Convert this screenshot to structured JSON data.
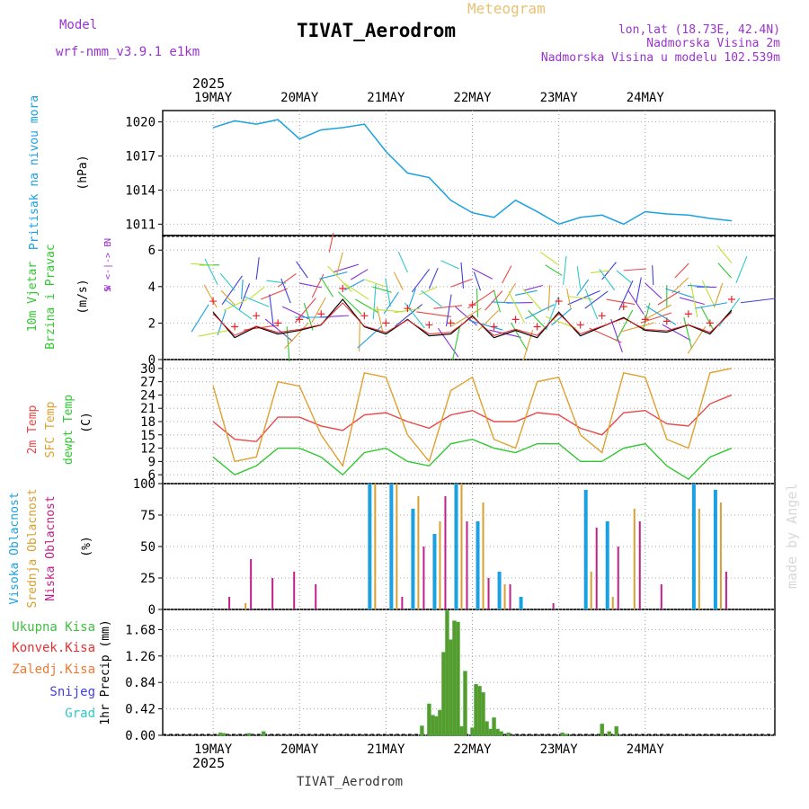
{
  "header": {
    "model_label": "Model",
    "model_name": "wrf-nmm_v3.9.1  e1km",
    "subtitle": "Meteogram",
    "title": "TIVAT_Aerodrom",
    "lonlat": "lon,lat (18.73E, 42.4N)",
    "elev": "Nadmorska Visina 2m",
    "elev_model": "Nadmorska Visina u modelu 102.539m",
    "footer": "TIVAT_Aerodrom",
    "watermark": "made by Angel",
    "year": "2025"
  },
  "colors": {
    "pressure": "#1ba1e2",
    "wind_black": "#000000",
    "wind_red": "#e8262a",
    "t2m": "#e84848",
    "sfc": "#e0a030",
    "dew": "#30c830",
    "high_cloud": "#1ba1e2",
    "mid_cloud": "#d8a030",
    "low_cloud": "#c0208a",
    "precip_total": "#40c040",
    "precip_conv": "#e83030",
    "precip_frz": "#f07830",
    "snow": "#4040e0",
    "hail": "#30c8c8"
  },
  "chart_data": [
    {
      "type": "line",
      "panel": "pressure",
      "ylabel_lines": [
        "Pritisak na nivou mora",
        "(hPa)"
      ],
      "x_ticks": [
        "19MAY",
        "20MAY",
        "21MAY",
        "22MAY",
        "23MAY",
        "24MAY"
      ],
      "yticks": [
        1011,
        1014,
        1017,
        1020
      ],
      "ylim": [
        1010,
        1021
      ],
      "x_hours": [
        0,
        6,
        12,
        18,
        24,
        30,
        36,
        42,
        48,
        54,
        60,
        66,
        72,
        78,
        84,
        90,
        96,
        102,
        108,
        114,
        120,
        126,
        132,
        138,
        144
      ],
      "series": [
        {
          "name": "Pritisak na nivou mora",
          "values": [
            1019.5,
            1020.1,
            1019.8,
            1020.2,
            1018.5,
            1019.3,
            1019.5,
            1019.8,
            1017.4,
            1015.5,
            1015.1,
            1013.1,
            1012.0,
            1011.6,
            1013.1,
            1012.1,
            1011.0,
            1011.6,
            1011.8,
            1011.0,
            1012.1,
            1011.9,
            1011.8,
            1011.5,
            1011.3
          ]
        }
      ]
    },
    {
      "type": "line",
      "panel": "wind",
      "ylabel_lines": [
        "10m Vjetar",
        "Brzina i Pravac",
        "(m/s)"
      ],
      "compass": [
        "N",
        "W <-|-> E",
        "S"
      ],
      "yticks": [
        0,
        2,
        4,
        6
      ],
      "ylim": [
        0,
        6.8
      ],
      "x_hours": [
        0,
        6,
        12,
        18,
        24,
        30,
        36,
        42,
        48,
        54,
        60,
        66,
        72,
        78,
        84,
        90,
        96,
        102,
        108,
        114,
        120,
        126,
        132,
        138,
        144
      ],
      "series": [
        {
          "name": "10m Vjetar",
          "values": [
            2.6,
            1.2,
            1.8,
            1.4,
            1.6,
            1.9,
            3.3,
            1.8,
            1.4,
            2.2,
            1.3,
            1.4,
            2.4,
            1.2,
            1.6,
            1.2,
            2.6,
            1.3,
            1.8,
            2.3,
            1.6,
            1.5,
            1.9,
            1.4,
            2.7
          ]
        }
      ]
    },
    {
      "type": "line",
      "panel": "temperature",
      "ylabel_lines": [
        "2m Temp",
        "SFC Temp",
        "dewpt Temp",
        "(C)"
      ],
      "yticks": [
        6,
        9,
        12,
        15,
        18,
        21,
        24,
        27,
        30
      ],
      "ylim": [
        4,
        32
      ],
      "x_hours": [
        0,
        6,
        12,
        18,
        24,
        30,
        36,
        42,
        48,
        54,
        60,
        66,
        72,
        78,
        84,
        90,
        96,
        102,
        108,
        114,
        120,
        126,
        132,
        138,
        144
      ],
      "series": [
        {
          "name": "2m Temp",
          "values": [
            18,
            14,
            13.5,
            19,
            19,
            17,
            16,
            19.5,
            20,
            18,
            16.5,
            19.5,
            20.5,
            18,
            18,
            20,
            19.5,
            16.5,
            15,
            20,
            20.5,
            17.5,
            17,
            22,
            24
          ]
        },
        {
          "name": "SFC Temp",
          "values": [
            26,
            9,
            10,
            27,
            26,
            15,
            8,
            29,
            28,
            15,
            9,
            25,
            28,
            14,
            12,
            27,
            28,
            15,
            11,
            29,
            28,
            14,
            12,
            29,
            30
          ]
        },
        {
          "name": "dewpt Temp",
          "values": [
            10,
            6,
            8,
            12,
            12,
            10,
            6,
            11,
            12,
            9,
            8,
            13,
            14,
            12,
            11,
            13,
            13,
            9,
            9,
            12,
            13,
            8,
            5,
            10,
            12
          ]
        }
      ]
    },
    {
      "type": "bar",
      "panel": "clouds",
      "ylabel_lines": [
        "Visoka Oblacnost",
        "Srednja Oblacnost",
        "Niska Oblacnost",
        "(%)"
      ],
      "yticks": [
        0,
        25,
        50,
        75,
        100
      ],
      "ylim": [
        0,
        100
      ],
      "x_hours": [
        3,
        9,
        15,
        21,
        27,
        33,
        39,
        45,
        51,
        57,
        63,
        69,
        75,
        81,
        87,
        93,
        99,
        105,
        111,
        117,
        123,
        129,
        135,
        141
      ],
      "series": [
        {
          "name": "Visoka Oblacnost",
          "values": [
            0,
            0,
            0,
            0,
            0,
            0,
            0,
            100,
            100,
            80,
            60,
            100,
            70,
            30,
            10,
            0,
            0,
            95,
            70,
            0,
            0,
            0,
            100,
            95
          ]
        },
        {
          "name": "Srednja Oblacnost",
          "values": [
            0,
            5,
            0,
            0,
            0,
            0,
            0,
            100,
            100,
            90,
            70,
            100,
            85,
            20,
            0,
            0,
            0,
            30,
            10,
            80,
            0,
            0,
            80,
            85
          ]
        },
        {
          "name": "Niska Oblacnost",
          "values": [
            10,
            40,
            25,
            30,
            20,
            0,
            0,
            0,
            10,
            50,
            90,
            70,
            25,
            20,
            0,
            5,
            0,
            65,
            50,
            70,
            20,
            0,
            0,
            30
          ]
        }
      ]
    },
    {
      "type": "bar",
      "panel": "precip",
      "ylabel_lines": [
        "Ukupna Kisa",
        "Konvek.Kisa",
        "Zaledj.Kisa",
        "Snijeg",
        "Grad",
        "1hr Precip (mm)"
      ],
      "yticks": [
        0,
        0.42,
        0.84,
        1.26,
        1.68
      ],
      "ylim": [
        0,
        2.0
      ],
      "x_ticks": [
        "19MAY",
        "20MAY",
        "21MAY",
        "22MAY",
        "23MAY",
        "24MAY"
      ],
      "x_hours": [
        2,
        3,
        10,
        14,
        58,
        60,
        61,
        62,
        63,
        64,
        65,
        66,
        67,
        68,
        69,
        70,
        72,
        73,
        74,
        75,
        76,
        77,
        78,
        79,
        80,
        82,
        97,
        98,
        108,
        110,
        112
      ],
      "series": [
        {
          "name": "Ukupna Kisa",
          "values": [
            0.04,
            0.03,
            0.03,
            0.06,
            0.15,
            0.5,
            0.32,
            0.3,
            0.4,
            1.32,
            1.98,
            1.52,
            1.82,
            1.8,
            0.14,
            1.02,
            0.12,
            0.81,
            0.78,
            0.68,
            0.22,
            0.1,
            0.28,
            0.1,
            0.06,
            0.04,
            0.04,
            0.02,
            0.18,
            0.06,
            0.14
          ]
        }
      ]
    }
  ]
}
